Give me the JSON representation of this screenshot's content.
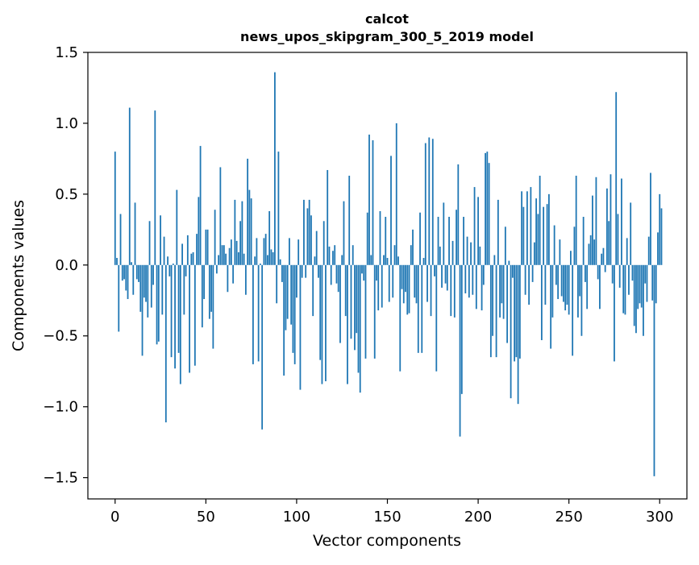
{
  "chart_data": {
    "type": "bar",
    "title": "calcot",
    "subtitle": "news_upos_skipgram_300_5_2019 model",
    "xlabel": "Vector components",
    "ylabel": "Components values",
    "xlim": [
      -15,
      315
    ],
    "ylim": [
      -1.65,
      1.5
    ],
    "xticks": [
      0,
      50,
      100,
      150,
      200,
      250,
      300
    ],
    "yticks": [
      1.5,
      1.0,
      0.5,
      0.0,
      -0.5,
      -1.0,
      -1.5
    ],
    "xtick_labels": [
      "0",
      "50",
      "100",
      "150",
      "200",
      "250",
      "300"
    ],
    "ytick_labels": [
      "1.5",
      "1.0",
      "0.5",
      "0.0",
      "−0.5",
      "−1.0",
      "−1.5"
    ],
    "grid": false,
    "bar_color": "#1f77b4",
    "values": [
      0.8,
      0.05,
      -0.47,
      0.36,
      -0.11,
      -0.1,
      -0.18,
      -0.24,
      1.11,
      0.02,
      -0.21,
      0.44,
      -0.1,
      -0.12,
      -0.33,
      -0.64,
      -0.23,
      -0.26,
      -0.37,
      0.31,
      -0.3,
      -0.14,
      1.09,
      -0.56,
      -0.54,
      0.35,
      -0.35,
      0.2,
      -1.11,
      0.06,
      -0.08,
      -0.65,
      0.01,
      -0.73,
      0.53,
      -0.62,
      -0.84,
      0.15,
      -0.35,
      -0.08,
      0.21,
      -0.76,
      0.08,
      0.09,
      -0.71,
      0.22,
      0.48,
      0.84,
      -0.44,
      -0.24,
      0.25,
      0.25,
      -0.38,
      -0.33,
      -0.59,
      0.39,
      -0.06,
      0.07,
      0.69,
      0.14,
      0.14,
      0.08,
      -0.19,
      0.12,
      0.18,
      -0.13,
      0.46,
      0.17,
      0.09,
      0.31,
      0.45,
      0.08,
      -0.21,
      0.75,
      0.53,
      0.47,
      -0.7,
      0.06,
      0.19,
      -0.68,
      0.01,
      -1.16,
      0.19,
      0.22,
      0.07,
      0.38,
      0.11,
      0.09,
      1.36,
      -0.27,
      0.8,
      0.04,
      -0.12,
      -0.78,
      -0.46,
      -0.38,
      0.19,
      -0.42,
      -0.62,
      -0.7,
      -0.23,
      0.18,
      -0.88,
      -0.09,
      0.46,
      -0.09,
      0.4,
      0.46,
      0.35,
      -0.36,
      0.06,
      0.24,
      -0.09,
      -0.67,
      -0.84,
      0.31,
      -0.82,
      0.67,
      0.13,
      -0.14,
      0.1,
      0.14,
      -0.13,
      -0.19,
      -0.55,
      0.07,
      0.45,
      -0.36,
      -0.84,
      0.63,
      -0.52,
      0.14,
      -0.6,
      -0.48,
      -0.76,
      -0.9,
      -0.06,
      -0.11,
      -0.66,
      0.37,
      0.92,
      0.07,
      0.88,
      -0.66,
      -0.11,
      -0.32,
      0.38,
      -0.3,
      0.07,
      0.34,
      0.05,
      -0.26,
      0.77,
      -0.23,
      0.14,
      1.0,
      0.06,
      -0.75,
      -0.17,
      -0.27,
      -0.19,
      -0.35,
      -0.34,
      0.14,
      0.25,
      -0.23,
      -0.27,
      -0.62,
      0.37,
      -0.62,
      0.05,
      0.86,
      -0.26,
      0.9,
      -0.36,
      0.89,
      -0.08,
      -0.75,
      0.34,
      0.13,
      -0.16,
      0.44,
      -0.13,
      -0.18,
      0.34,
      -0.36,
      0.17,
      -0.37,
      0.39,
      0.71,
      -1.21,
      -0.91,
      0.34,
      -0.2,
      0.2,
      -0.23,
      0.16,
      -0.21,
      0.55,
      -0.31,
      0.48,
      0.13,
      -0.32,
      -0.14,
      0.79,
      0.8,
      0.72,
      -0.65,
      -0.5,
      0.07,
      -0.65,
      0.46,
      -0.37,
      -0.27,
      -0.38,
      0.27,
      -0.55,
      0.03,
      -0.94,
      -0.09,
      -0.68,
      -0.65,
      -0.98,
      -0.66,
      0.52,
      0.41,
      -0.21,
      0.52,
      -0.28,
      0.55,
      -0.12,
      0.16,
      0.47,
      0.36,
      0.63,
      -0.53,
      0.41,
      -0.28,
      0.43,
      0.5,
      -0.59,
      -0.37,
      0.28,
      -0.14,
      -0.24,
      0.18,
      -0.22,
      -0.26,
      -0.32,
      -0.28,
      -0.35,
      0.1,
      -0.64,
      0.27,
      0.63,
      -0.37,
      -0.22,
      -0.5,
      0.34,
      -0.12,
      -0.31,
      0.15,
      0.21,
      0.49,
      0.18,
      0.62,
      -0.1,
      -0.31,
      0.08,
      0.12,
      -0.05,
      0.54,
      0.31,
      0.64,
      -0.13,
      -0.68,
      1.22,
      0.36,
      -0.16,
      0.61,
      -0.34,
      -0.35,
      0.19,
      -0.21,
      0.44,
      -0.11,
      -0.43,
      -0.48,
      -0.31,
      -0.27,
      -0.3,
      -0.5,
      -0.13,
      -0.26,
      0.2,
      0.65,
      -0.25,
      -1.49,
      -0.27,
      0.23,
      0.5,
      0.4
    ]
  }
}
